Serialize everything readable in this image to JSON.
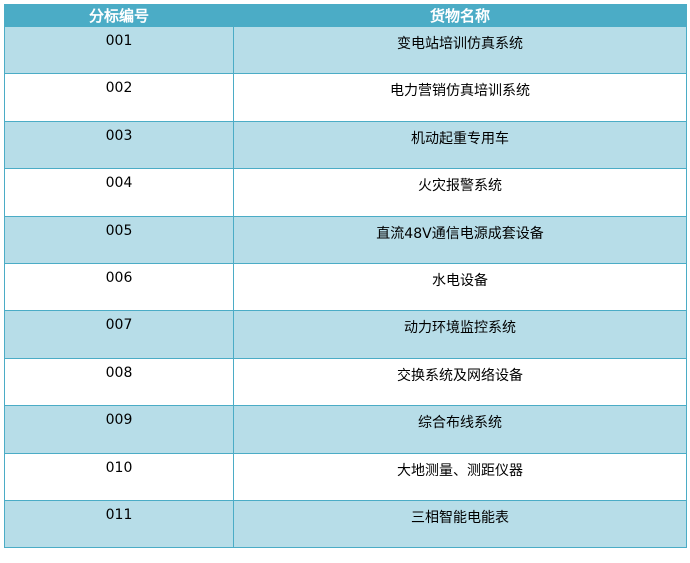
{
  "colors": {
    "header": "#4BACC6",
    "band": "#B7DDE8",
    "border": "#4BACC6"
  },
  "table": {
    "headers": [
      "分标编号",
      "货物名称"
    ],
    "rows": [
      [
        "001",
        "变电站培训仿真系统"
      ],
      [
        "002",
        "电力营销仿真培训系统"
      ],
      [
        "003",
        "机动起重专用车"
      ],
      [
        "004",
        "火灾报警系统"
      ],
      [
        "005",
        "直流48V通信电源成套设备"
      ],
      [
        "006",
        "水电设备"
      ],
      [
        "007",
        "动力环境监控系统"
      ],
      [
        "008",
        "交换系统及网络设备"
      ],
      [
        "009",
        "综合布线系统"
      ],
      [
        "010",
        "大地测量、测距仪器"
      ],
      [
        "011",
        "三相智能电能表"
      ]
    ]
  }
}
